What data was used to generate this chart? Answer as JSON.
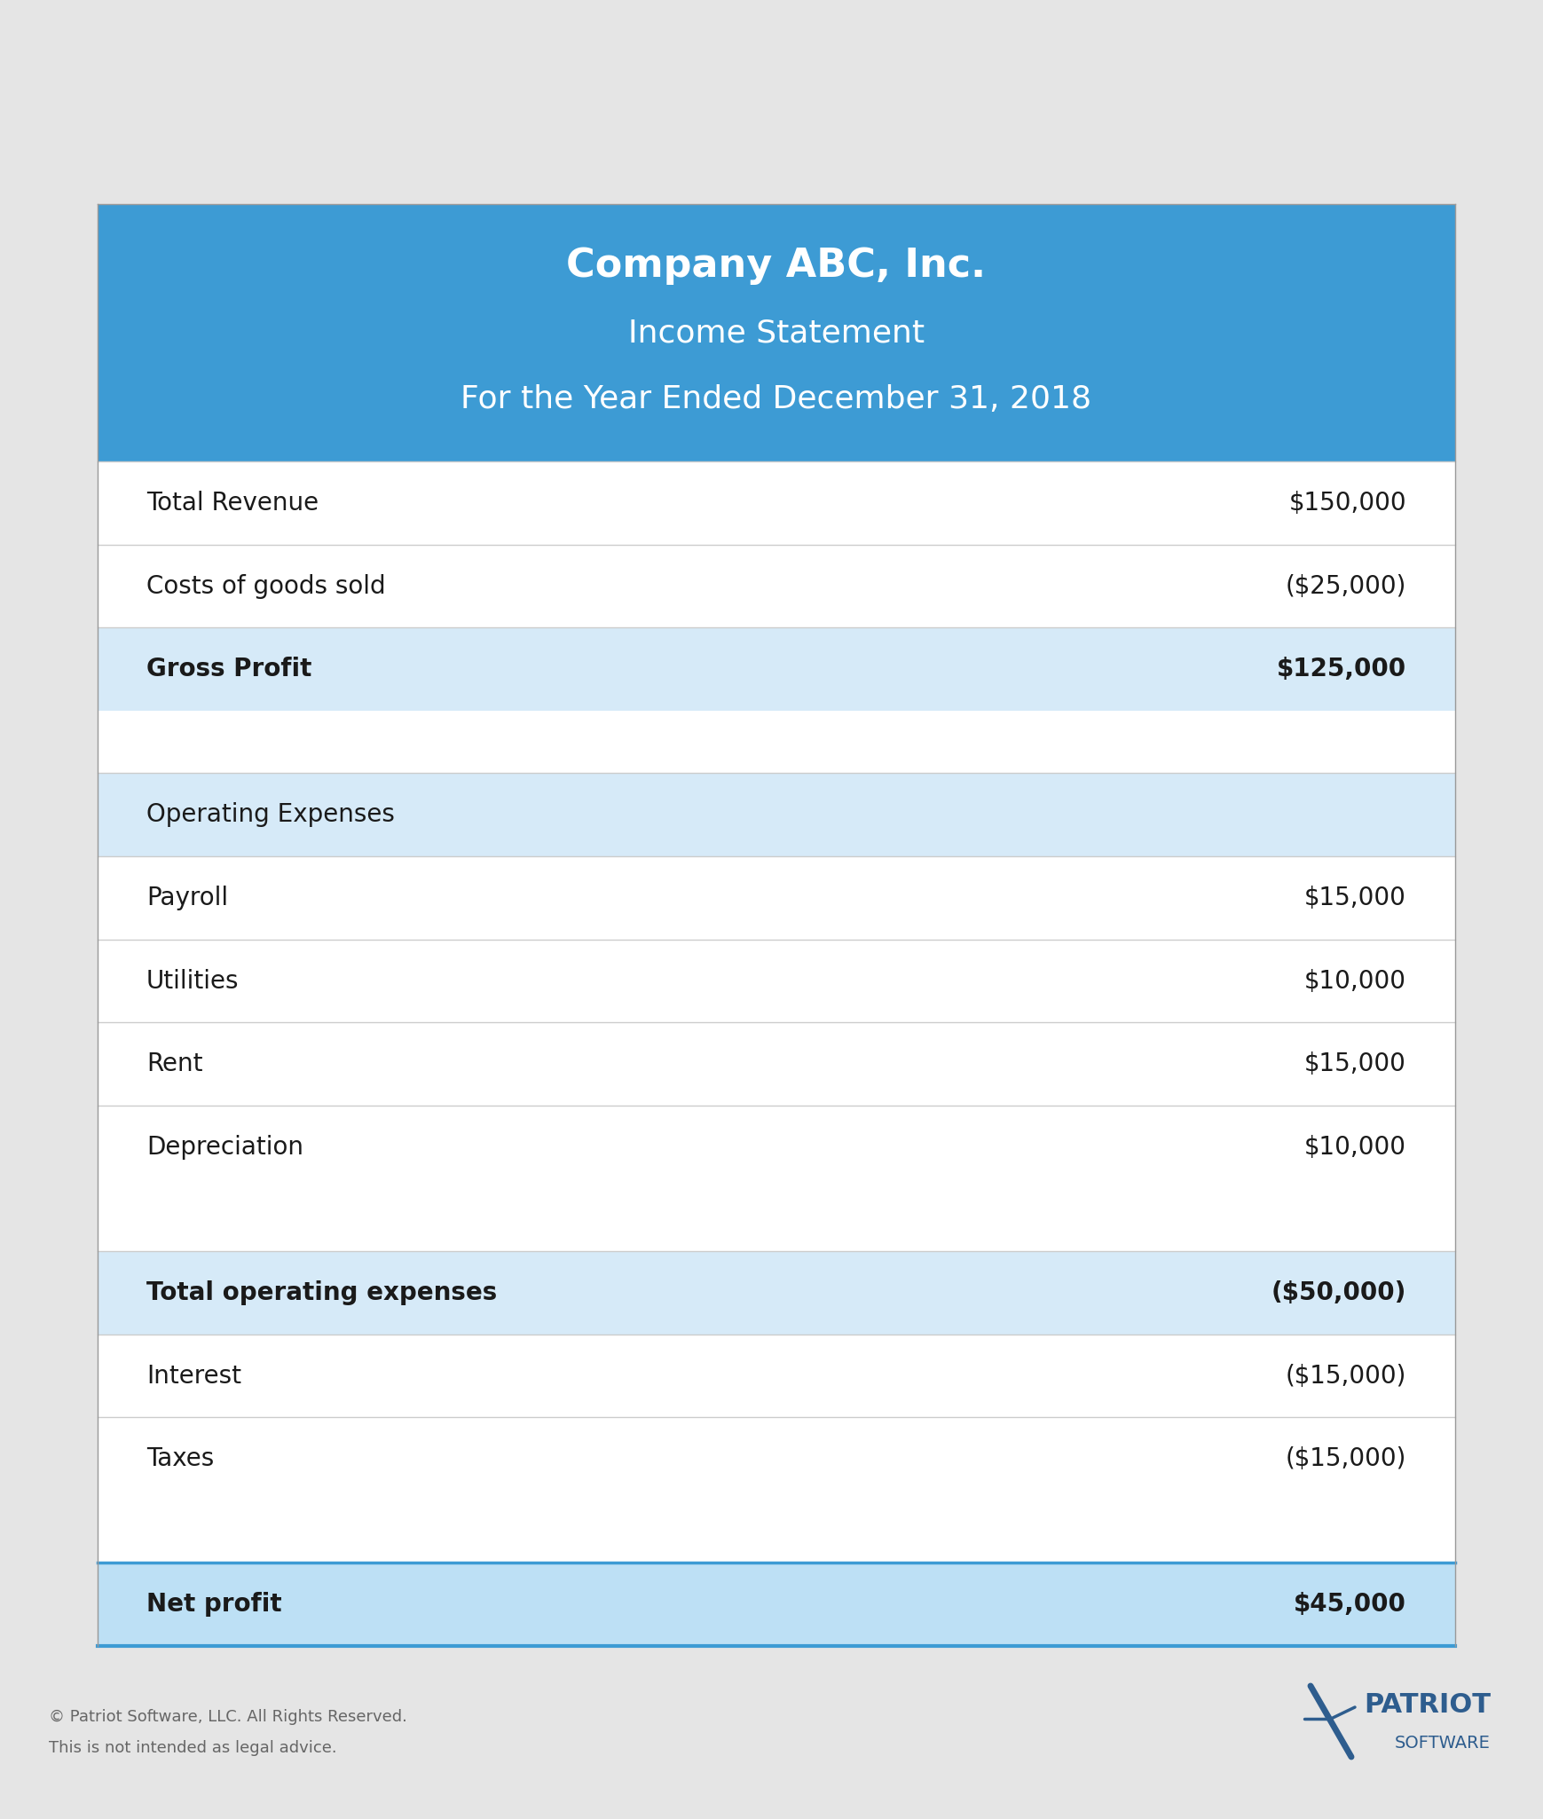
{
  "bg_color": "#e5e5e5",
  "table_bg": "#ffffff",
  "header_bg": "#3d9bd4",
  "header_text_color": "#ffffff",
  "light_blue_bg": "#d6eaf8",
  "net_blue_bg": "#bde0f5",
  "dark_text": "#1a1a1a",
  "line_color": "#cccccc",
  "blue_line_color": "#3d9bd4",
  "title_line1": "Company ABC, Inc.",
  "title_line2": "Income Statement",
  "title_line3": "For the Year Ended December 31, 2018",
  "footer_line1": "© Patriot Software, LLC. All Rights Reserved.",
  "footer_line2": "This is not intended as legal advice.",
  "footer_color": "#666666",
  "logo_color": "#2e5d8e",
  "rows": [
    {
      "label": "Total Revenue",
      "value": "$150,000",
      "bold": false,
      "highlight": false,
      "spacer": false,
      "category": false,
      "net": false
    },
    {
      "label": "Costs of goods sold",
      "value": "($25,000)",
      "bold": false,
      "highlight": false,
      "spacer": false,
      "category": false,
      "net": false
    },
    {
      "label": "Gross Profit",
      "value": "$125,000",
      "bold": true,
      "highlight": true,
      "spacer": false,
      "category": false,
      "net": false
    },
    {
      "label": "",
      "value": "",
      "bold": false,
      "highlight": false,
      "spacer": true,
      "category": false,
      "net": false
    },
    {
      "label": "Operating Expenses",
      "value": "",
      "bold": false,
      "highlight": true,
      "spacer": false,
      "category": true,
      "net": false
    },
    {
      "label": "Payroll",
      "value": "$15,000",
      "bold": false,
      "highlight": false,
      "spacer": false,
      "category": false,
      "net": false
    },
    {
      "label": "Utilities",
      "value": "$10,000",
      "bold": false,
      "highlight": false,
      "spacer": false,
      "category": false,
      "net": false
    },
    {
      "label": "Rent",
      "value": "$15,000",
      "bold": false,
      "highlight": false,
      "spacer": false,
      "category": false,
      "net": false
    },
    {
      "label": "Depreciation",
      "value": "$10,000",
      "bold": false,
      "highlight": false,
      "spacer": false,
      "category": false,
      "net": false
    },
    {
      "label": "",
      "value": "",
      "bold": false,
      "highlight": false,
      "spacer": true,
      "category": false,
      "net": false
    },
    {
      "label": "Total operating expenses",
      "value": "($50,000)",
      "bold": true,
      "highlight": true,
      "spacer": false,
      "category": false,
      "net": false
    },
    {
      "label": "Interest",
      "value": "($15,000)",
      "bold": false,
      "highlight": false,
      "spacer": false,
      "category": false,
      "net": false
    },
    {
      "label": "Taxes",
      "value": "($15,000)",
      "bold": false,
      "highlight": false,
      "spacer": false,
      "category": false,
      "net": false
    },
    {
      "label": "",
      "value": "",
      "bold": false,
      "highlight": false,
      "spacer": true,
      "category": false,
      "net": false
    },
    {
      "label": "Net profit",
      "value": "$45,000",
      "bold": true,
      "highlight": true,
      "spacer": false,
      "category": false,
      "net": true
    }
  ]
}
